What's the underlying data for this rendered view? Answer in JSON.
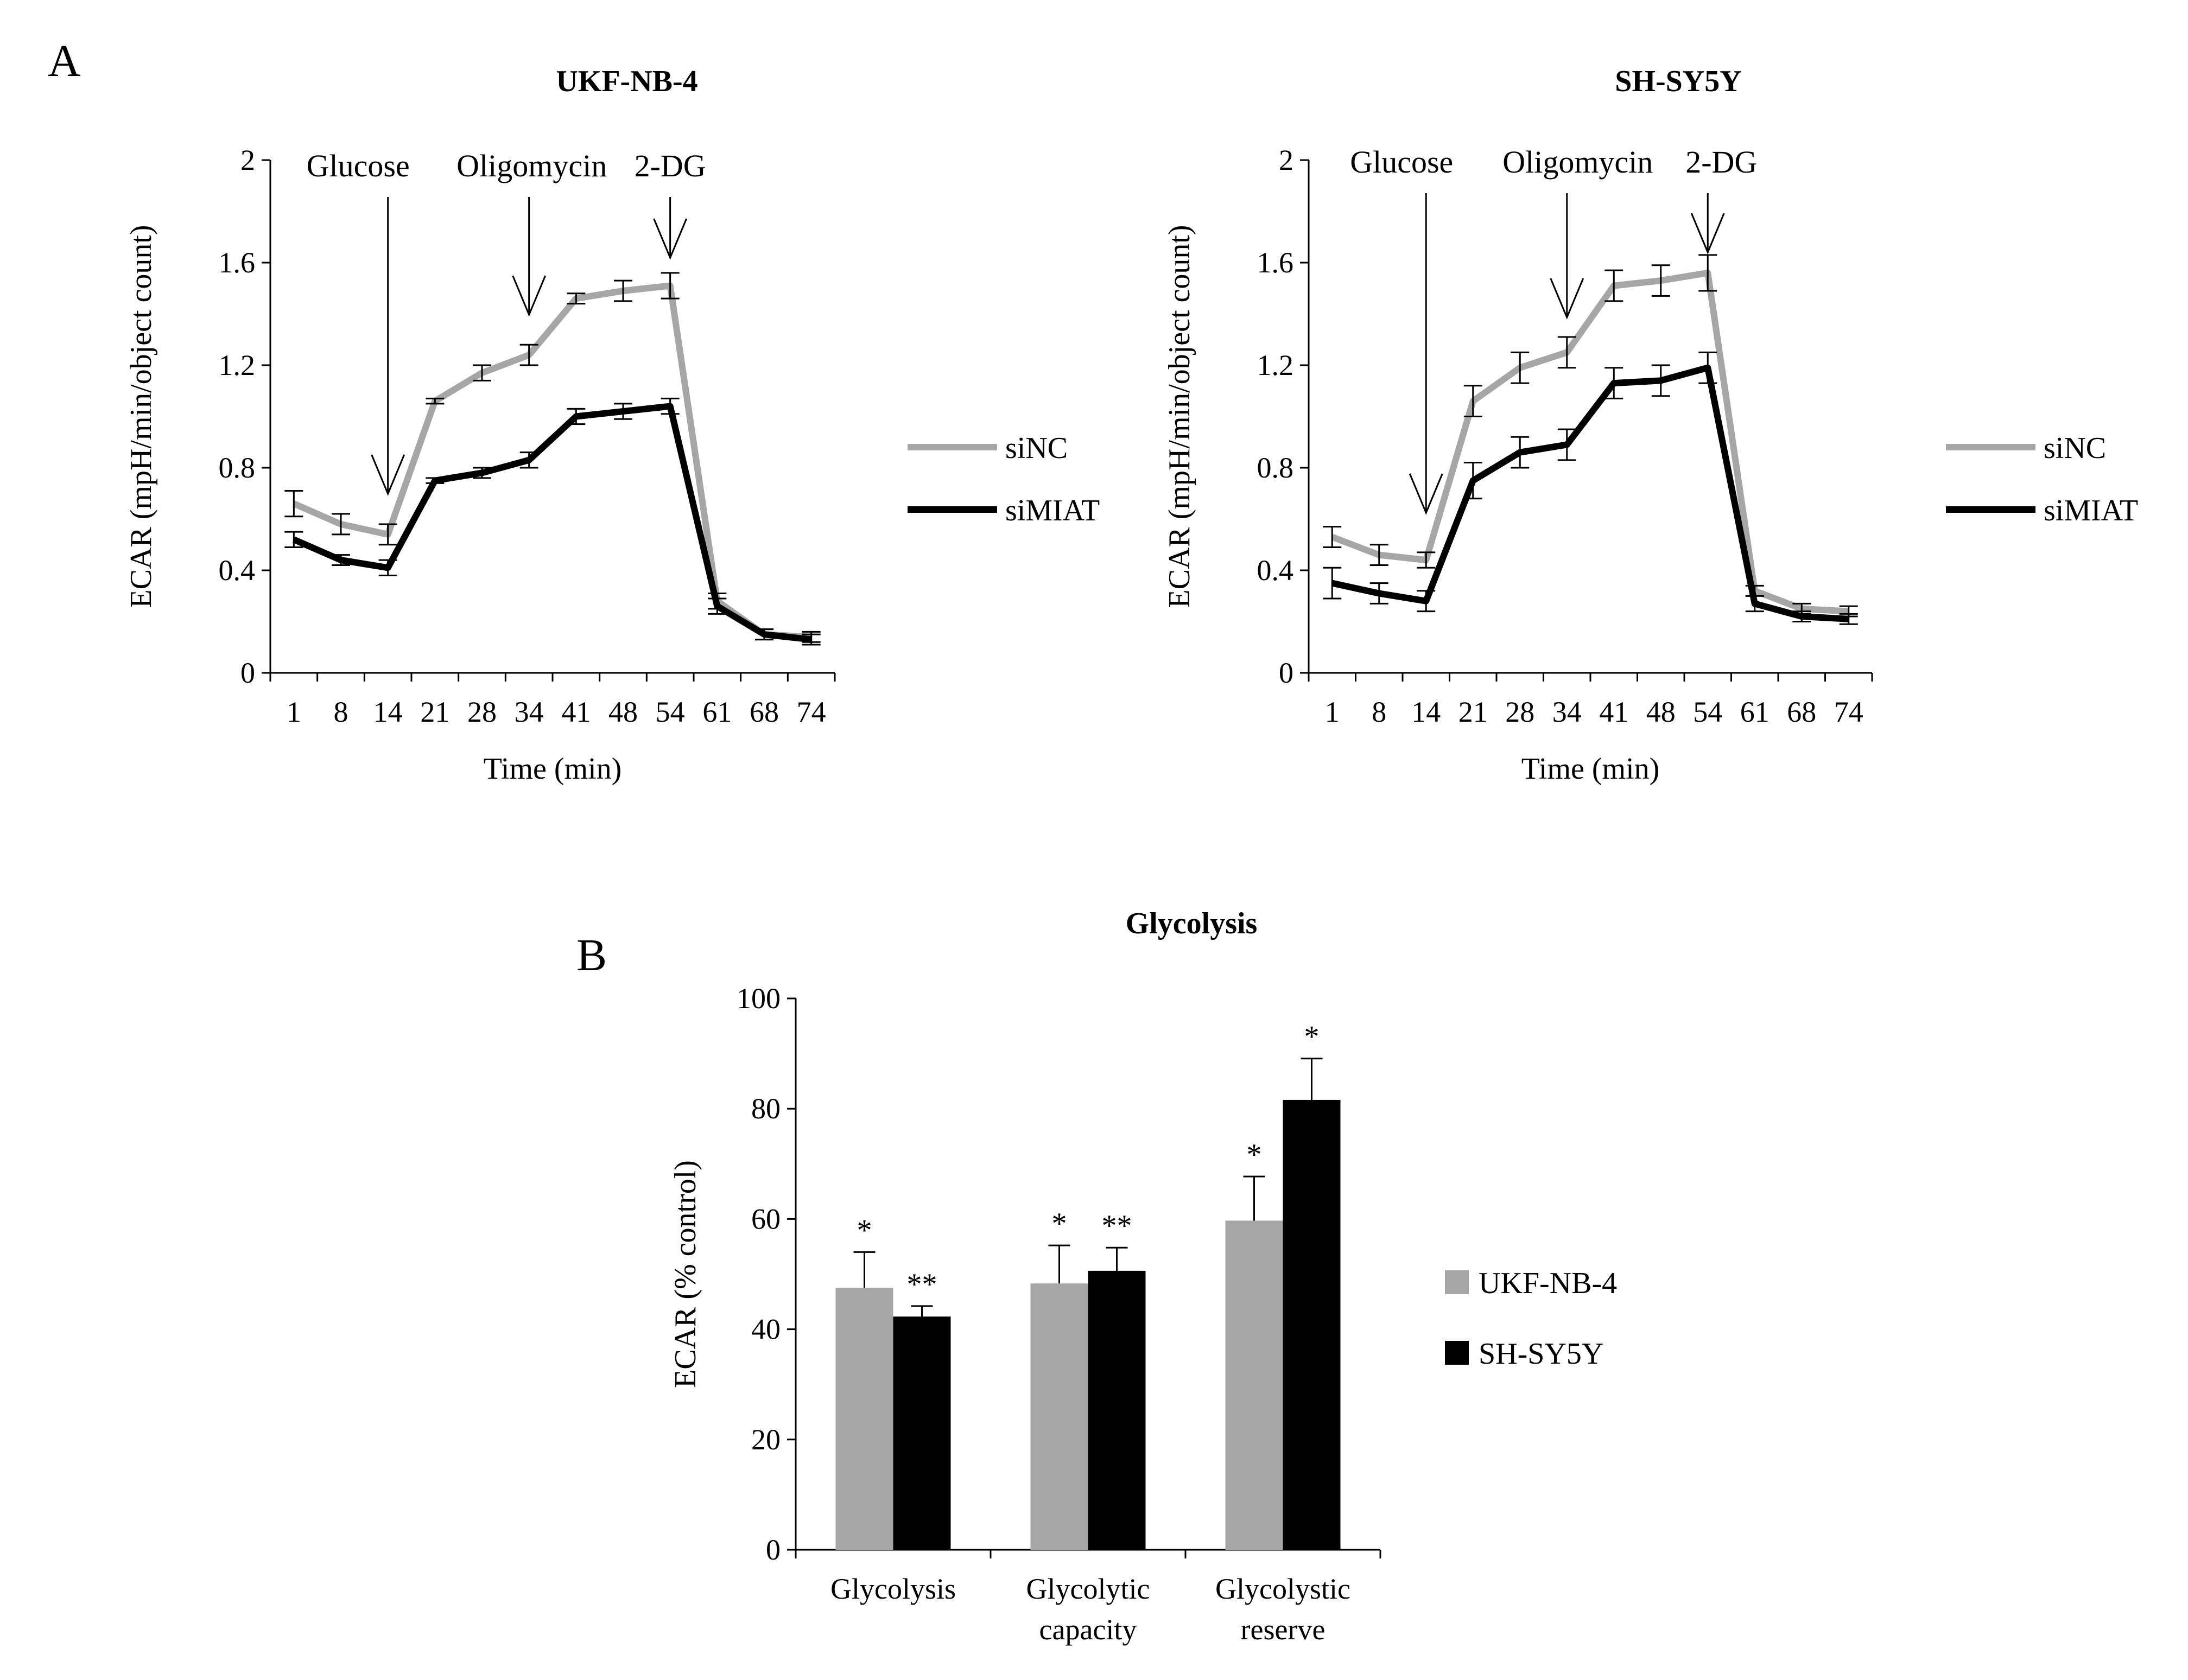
{
  "panels": {
    "a": {
      "letter": "A"
    },
    "b": {
      "letter": "B"
    }
  },
  "colors": {
    "siNC": "#a6a6a6",
    "siMIAT": "#000000",
    "UKF-NB-4": "#a6a6a6",
    "SH-SY5Y": "#000000"
  },
  "chart_data": [
    {
      "type": "line",
      "title": "UKF-NB-4",
      "xlabel": "Time (min)",
      "ylabel": "ECAR (mpH/min/object count)",
      "ylim": [
        0,
        2
      ],
      "yticks": [
        "0",
        "0.4",
        "0.8",
        "1.2",
        "1.6",
        "2"
      ],
      "x": [
        "1",
        "8",
        "14",
        "21",
        "28",
        "34",
        "41",
        "48",
        "54",
        "61",
        "68",
        "74"
      ],
      "series": [
        {
          "name": "siNC",
          "values": [
            0.66,
            0.58,
            0.54,
            1.06,
            1.17,
            1.24,
            1.46,
            1.49,
            1.51,
            0.28,
            0.15,
            0.14
          ],
          "errors": [
            0.05,
            0.04,
            0.04,
            0.01,
            0.03,
            0.04,
            0.02,
            0.04,
            0.05,
            0.03,
            0.02,
            0.02
          ]
        },
        {
          "name": "siMIAT",
          "values": [
            0.52,
            0.44,
            0.41,
            0.75,
            0.78,
            0.83,
            1.0,
            1.02,
            1.04,
            0.26,
            0.15,
            0.13
          ],
          "errors": [
            0.03,
            0.02,
            0.03,
            0.01,
            0.02,
            0.03,
            0.03,
            0.03,
            0.03,
            0.03,
            0.02,
            0.02
          ]
        }
      ],
      "annotations": [
        {
          "text": "Glucose",
          "x": "14"
        },
        {
          "text": "Oligomycin",
          "x": "34"
        },
        {
          "text": "2-DG",
          "x": "54"
        }
      ],
      "legend": "right"
    },
    {
      "type": "line",
      "title": "SH-SY5Y",
      "xlabel": "Time (min)",
      "ylabel": "ECAR (mpH/min/object count)",
      "ylim": [
        0,
        2
      ],
      "yticks": [
        "0",
        "0.4",
        "0.8",
        "1.2",
        "1.6",
        "2"
      ],
      "x": [
        "1",
        "8",
        "14",
        "21",
        "28",
        "34",
        "41",
        "48",
        "54",
        "61",
        "68",
        "74"
      ],
      "series": [
        {
          "name": "siNC",
          "values": [
            0.53,
            0.46,
            0.44,
            1.06,
            1.19,
            1.25,
            1.51,
            1.53,
            1.56,
            0.32,
            0.25,
            0.24
          ],
          "errors": [
            0.04,
            0.04,
            0.03,
            0.06,
            0.06,
            0.06,
            0.06,
            0.06,
            0.07,
            0.02,
            0.02,
            0.02
          ]
        },
        {
          "name": "siMIAT",
          "values": [
            0.35,
            0.31,
            0.28,
            0.75,
            0.86,
            0.89,
            1.13,
            1.14,
            1.19,
            0.27,
            0.22,
            0.21
          ],
          "errors": [
            0.06,
            0.04,
            0.04,
            0.07,
            0.06,
            0.06,
            0.06,
            0.06,
            0.06,
            0.03,
            0.02,
            0.02
          ]
        }
      ],
      "annotations": [
        {
          "text": "Glucose",
          "x": "14"
        },
        {
          "text": "Oligomycin",
          "x": "34"
        },
        {
          "text": "2-DG",
          "x": "54"
        }
      ],
      "legend": "right"
    },
    {
      "type": "bar",
      "title": "Glycolysis",
      "xlabel": "",
      "ylabel": "ECAR (% control)",
      "ylim": [
        0,
        100
      ],
      "yticks": [
        "0",
        "20",
        "40",
        "60",
        "80",
        "100"
      ],
      "categories": [
        {
          "line1": "Glycolysis",
          "line2": ""
        },
        {
          "line1": "Glycolytic",
          "line2": "capacity"
        },
        {
          "line1": "Glycolystic",
          "line2": "reserve"
        }
      ],
      "series": [
        {
          "name": "UKF-NB-4",
          "values": [
            47.5,
            48.3,
            59.7
          ],
          "errors": [
            6.5,
            6.9,
            8.0
          ],
          "significance": [
            "*",
            "*",
            "*"
          ]
        },
        {
          "name": "SH-SY5Y",
          "values": [
            42.3,
            50.6,
            81.6
          ],
          "errors": [
            1.9,
            4.2,
            7.5
          ],
          "significance": [
            "**",
            "**",
            "*"
          ]
        }
      ],
      "legend": "right"
    }
  ]
}
